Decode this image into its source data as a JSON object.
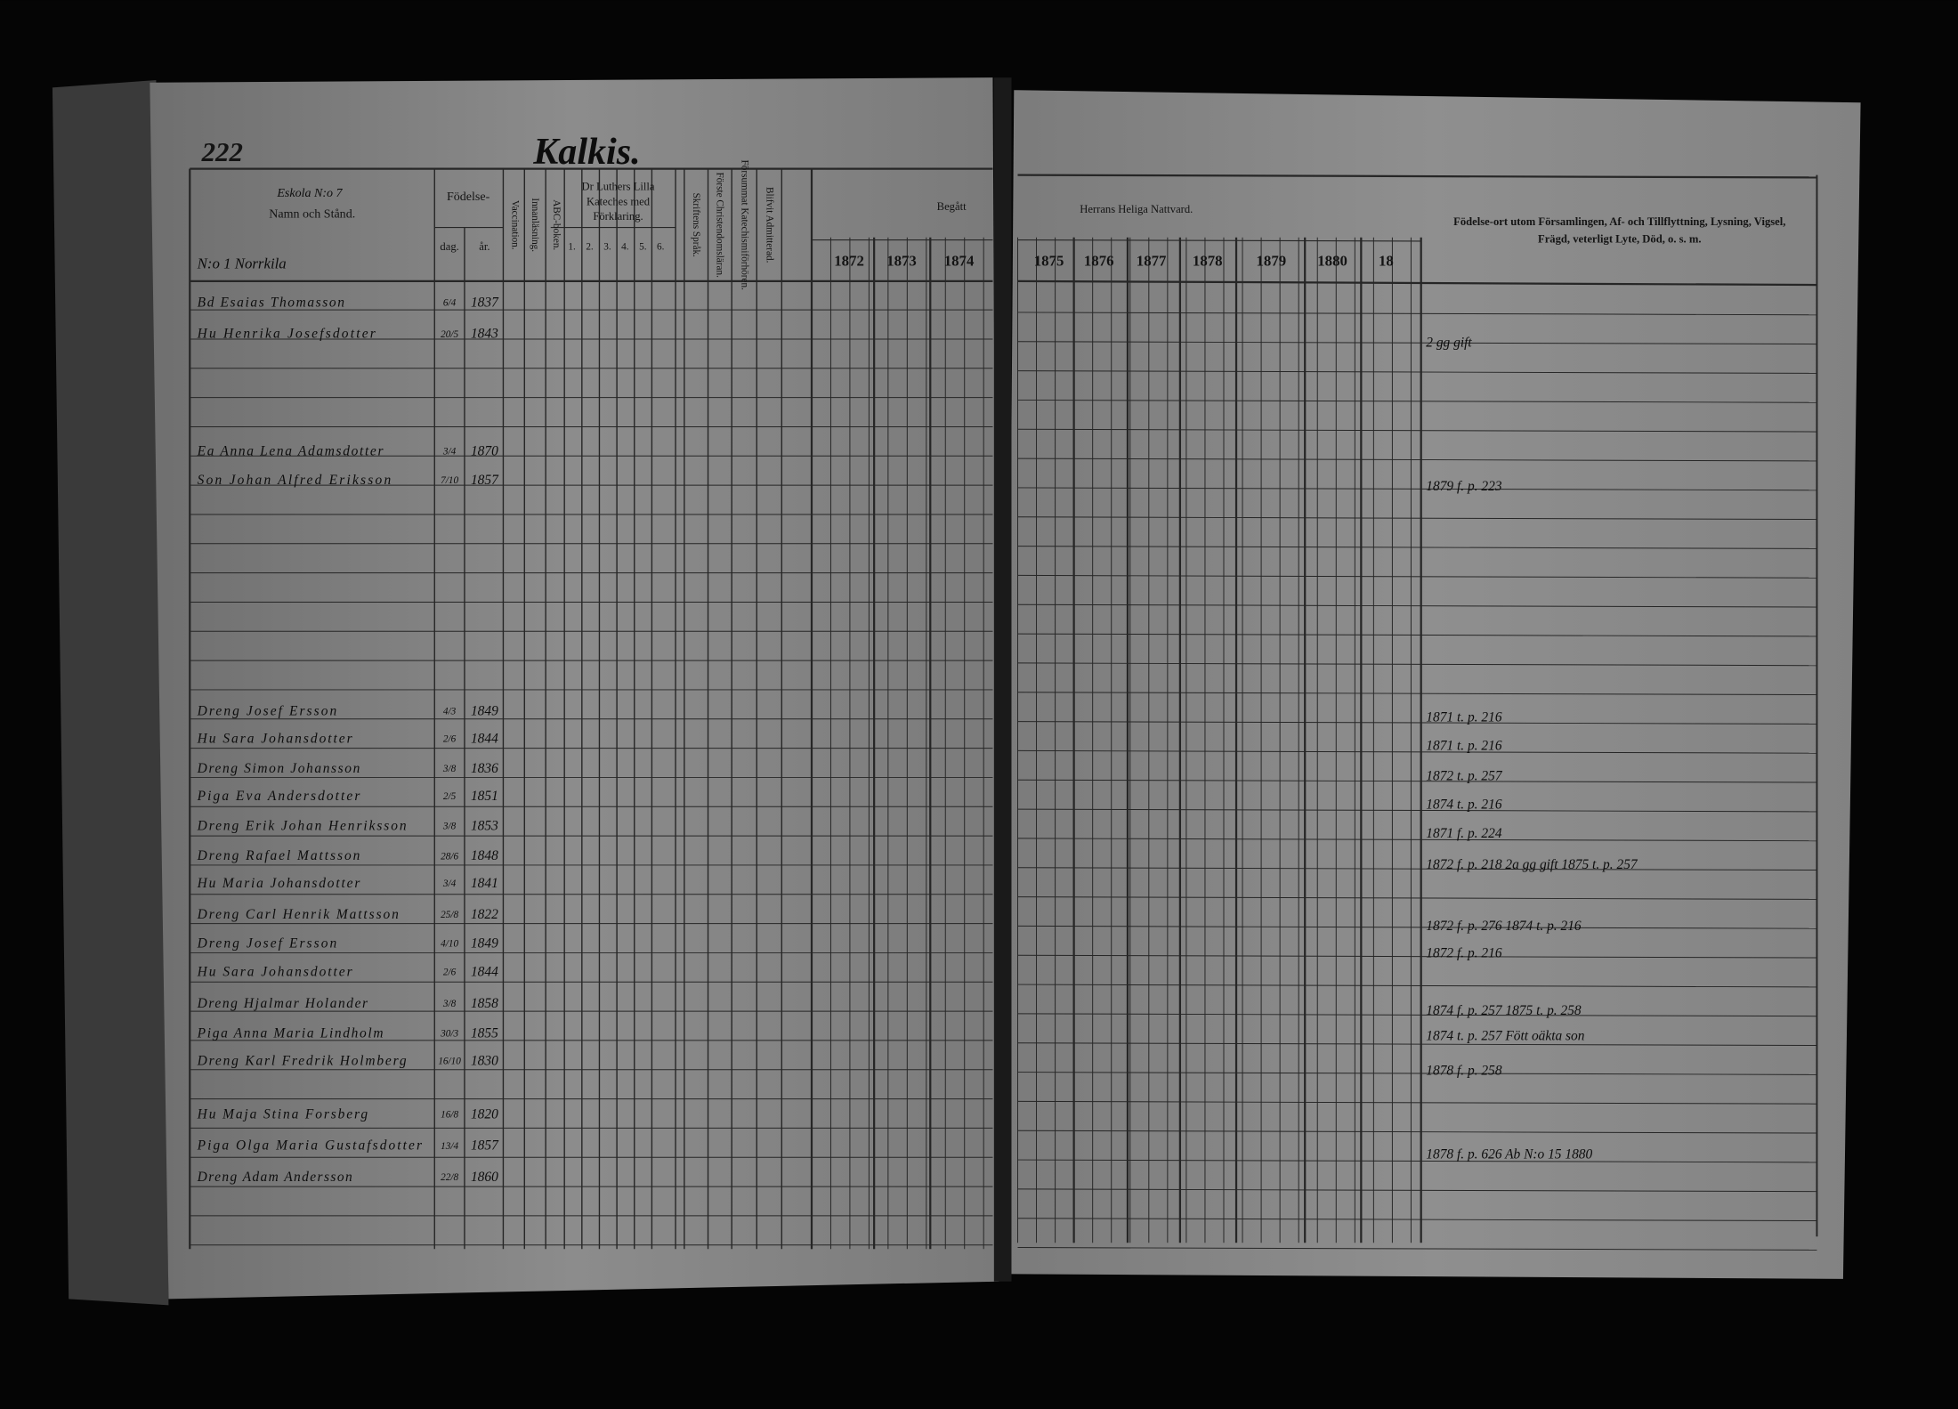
{
  "header": {
    "page_number": "222",
    "village": "Kalkis.",
    "parish_note": "Eskola N:o 7",
    "section": "N:o 1 Norrkila"
  },
  "columns": {
    "name": "Namn och Stånd.",
    "birth": "Födelse-",
    "day": "dag.",
    "year": "år.",
    "vaccination": "Vaccination.",
    "reading": "Innanläsning.",
    "abc": "ABC-boken.",
    "catechism": [
      "Dr Luthers Lilla",
      "Kateches med",
      "Förklaring."
    ],
    "catechism_parts": [
      "1.",
      "2.",
      "3.",
      "4.",
      "5.",
      "6."
    ],
    "scripture": "Skriftens Språk.",
    "first_doctrine": "Förste Christendomsläran.",
    "missed": "Försummat Katechismiförhören.",
    "admitted": "Blifvit Admitterad.",
    "communion_taken": "Begått",
    "communion": "Herrans Heliga Nattvard.",
    "years": [
      "1872",
      "1873",
      "1874",
      "1875",
      "1876",
      "1877",
      "1878",
      "1879",
      "1880",
      "18"
    ],
    "remarks": [
      "Födelse-ort utom Församlingen, Af- och Tillflyttning, Lysning, Vigsel,",
      "Frägd, veterligt Lyte, Död, o. s. m."
    ]
  },
  "rows": [
    {
      "name": "Bd Esaias Thomasson",
      "day": "6/4",
      "year": "1837"
    },
    {
      "name": "Hu Henrika Josefsdotter",
      "day": "20/5",
      "year": "1843"
    },
    {
      "name": "Ea Anna Lena Adamsdotter",
      "day": "3/4",
      "year": "1870"
    },
    {
      "name": "Son Johan Alfred Eriksson",
      "day": "7/10",
      "year": "1857"
    },
    {
      "name": "Dreng Josef Ersson",
      "day": "4/3",
      "year": "1849"
    },
    {
      "name": "Hu Sara Johansdotter",
      "day": "2/6",
      "year": "1844"
    },
    {
      "name": "Dreng Simon Johansson",
      "day": "3/8",
      "year": "1836"
    },
    {
      "name": "Piga Eva Andersdotter",
      "day": "2/5",
      "year": "1851"
    },
    {
      "name": "Dreng Erik Johan Henriksson",
      "day": "3/8",
      "year": "1853"
    },
    {
      "name": "Dreng Rafael Mattsson",
      "day": "28/6",
      "year": "1848"
    },
    {
      "name": "Hu Maria Johansdotter",
      "day": "3/4",
      "year": "1841"
    },
    {
      "name": "Dreng Carl Henrik Mattsson",
      "day": "25/8",
      "year": "1822"
    },
    {
      "name": "Dreng Josef Ersson",
      "day": "4/10",
      "year": "1849"
    },
    {
      "name": "Hu Sara Johansdotter",
      "day": "2/6",
      "year": "1844"
    },
    {
      "name": "Dreng Hjalmar Holander",
      "day": "3/8",
      "year": "1858"
    },
    {
      "name": "Piga Anna Maria Lindholm",
      "day": "30/3",
      "year": "1855"
    },
    {
      "name": "Dreng Karl Fredrik Holmberg",
      "day": "16/10",
      "year": "1830"
    },
    {
      "name": "Hu Maja Stina Forsberg",
      "day": "16/8",
      "year": "1820"
    },
    {
      "name": "Piga Olga Maria Gustafsdotter",
      "day": "13/4",
      "year": "1857"
    },
    {
      "name": "Dreng Adam Andersson",
      "day": "22/8",
      "year": "1860"
    }
  ],
  "remarks": [
    "2 gg gift",
    "1879 f. p. 223",
    "1871 t. p. 216",
    "1871 t. p. 216",
    "1872 t. p. 257",
    "1874 t. p. 216",
    "1871 f. p. 224",
    "1872 f. p. 218  2a gg gift  1875 t. p. 257",
    "1872 f. p. 276  1874 t. p. 216",
    "1872 f. p. 216",
    "1874 f. p. 257  1875 t. p. 258",
    "1874 t. p. 257  Fött oäkta son",
    "1878 f. p. 258",
    "1878 f. p. 626  Ab N:o 15 1880"
  ]
}
